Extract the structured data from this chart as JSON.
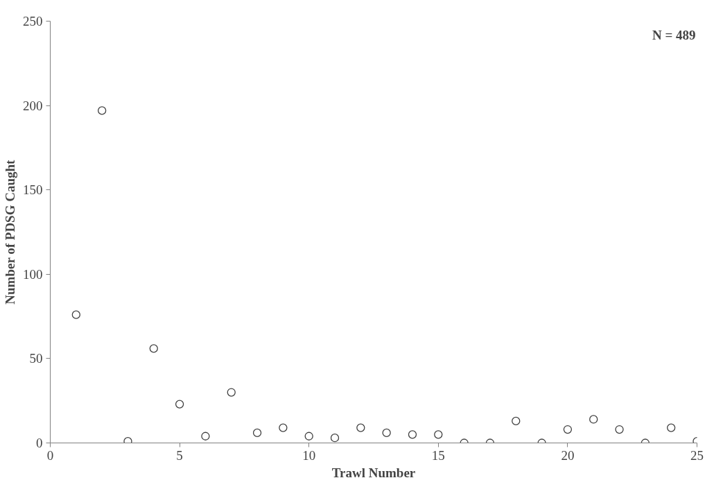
{
  "chart_data": {
    "type": "scatter",
    "xlabel": "Trawl Number",
    "ylabel": "Number of PDSG Caught",
    "x": [
      1,
      2,
      3,
      4,
      5,
      6,
      7,
      8,
      9,
      10,
      11,
      12,
      13,
      14,
      15,
      16,
      17,
      18,
      19,
      20,
      21,
      22,
      23,
      24,
      25
    ],
    "series": [
      {
        "color": "#404040",
        "values": [
          76,
          197,
          1,
          56,
          23,
          4,
          30,
          6,
          9,
          4,
          3,
          9,
          6,
          5,
          5,
          0,
          0,
          13,
          0,
          8,
          14,
          8,
          0,
          9,
          1
        ]
      }
    ],
    "xlim": [
      0,
      25
    ],
    "xticks": [
      0,
      5,
      10,
      15,
      20,
      25
    ],
    "ylim": [
      0,
      250
    ],
    "yticks": [
      0,
      50,
      100,
      150,
      200,
      250
    ],
    "marker": "circle",
    "grid": false,
    "annotations": [
      "N = 489"
    ]
  }
}
